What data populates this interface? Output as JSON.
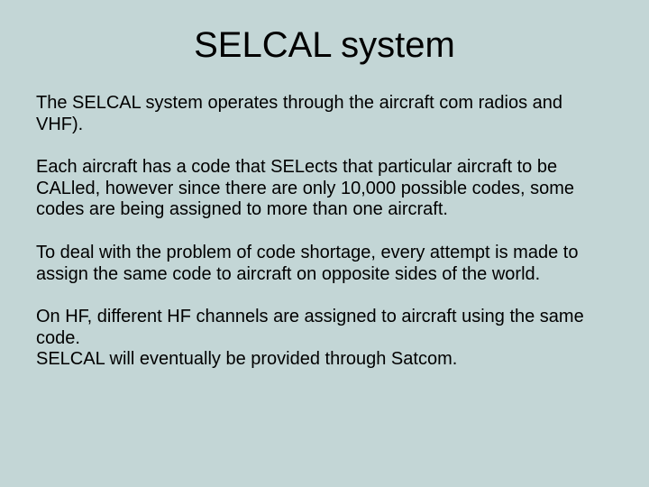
{
  "slide": {
    "background_color": "#c3d6d6",
    "text_color": "#000000",
    "title": "SELCAL system",
    "title_fontsize": 40,
    "body_fontsize": 20,
    "font_family": "Arial",
    "paragraphs": [
      "The SELCAL system operates through the aircraft com radios and VHF).",
      "Each aircraft has a code that SELects that particular aircraft to be CALled, however since there are only 10,000 possible codes, some codes are being assigned to more than one aircraft.",
      "To deal with the problem of code shortage, every attempt is made to assign the same code to aircraft on opposite sides of the world.",
      "On HF, different HF channels are assigned to aircraft using the same code.\nSELCAL will eventually be provided through Satcom."
    ]
  }
}
